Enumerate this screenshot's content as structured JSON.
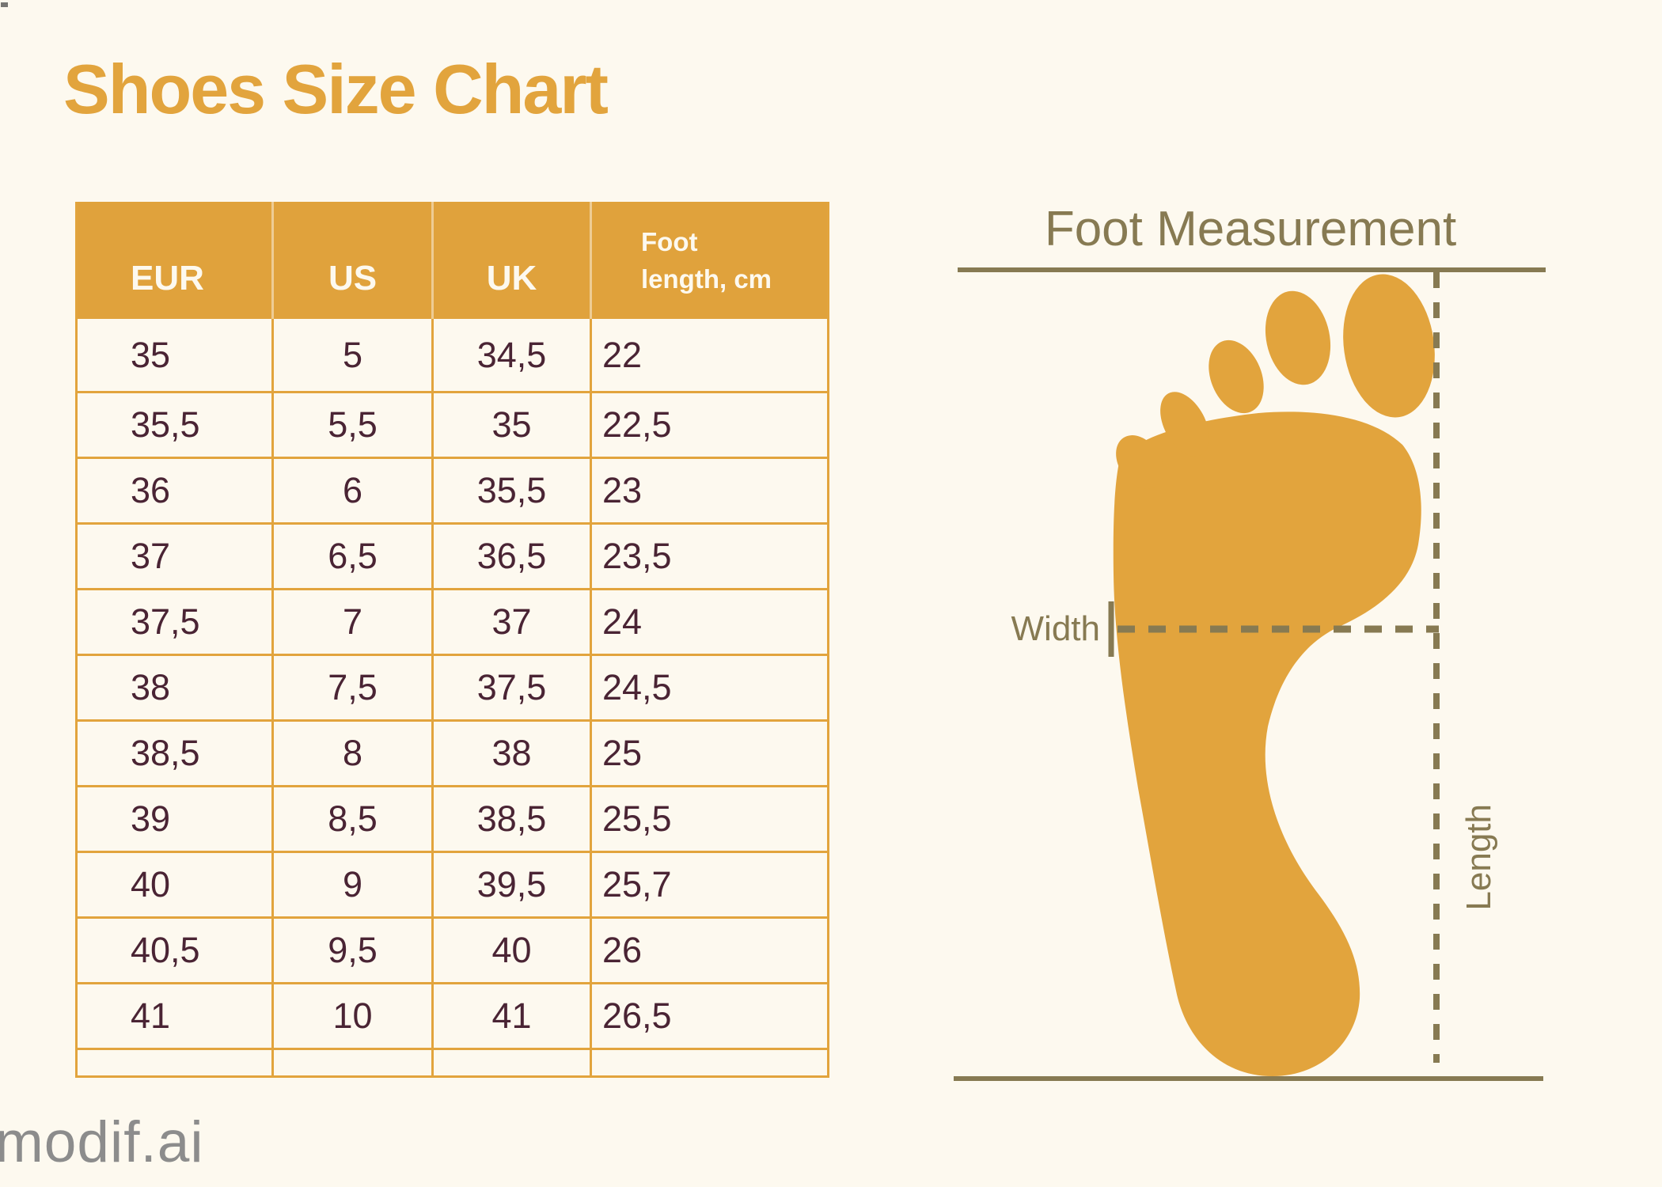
{
  "title": "Shoes Size Chart",
  "watermark": "modif.ai",
  "colors": {
    "background": "#FDF9EF",
    "accent_orange": "#E2A43D",
    "header_fill": "#E0A23C",
    "table_text": "#4A2434",
    "header_text": "#FDF9EF",
    "measurement_olive": "#877A52",
    "watermark_gray": "#8C8C8C"
  },
  "chart_data": {
    "type": "table",
    "title": "Shoes Size Chart",
    "columns": [
      "EUR",
      "US",
      "UK",
      "Foot length, cm"
    ],
    "rows": [
      [
        "35",
        "5",
        "34,5",
        "22"
      ],
      [
        "35,5",
        "5,5",
        "35",
        "22,5"
      ],
      [
        "36",
        "6",
        "35,5",
        "23"
      ],
      [
        "37",
        "6,5",
        "36,5",
        "23,5"
      ],
      [
        "37,5",
        "7",
        "37",
        "24"
      ],
      [
        "38",
        "7,5",
        "37,5",
        "24,5"
      ],
      [
        "38,5",
        "8",
        "38",
        "25"
      ],
      [
        "39",
        "8,5",
        "38,5",
        "25,5"
      ],
      [
        "40",
        "9",
        "39,5",
        "25,7"
      ],
      [
        "40,5",
        "9,5",
        "40",
        "26"
      ],
      [
        "41",
        "10",
        "41",
        "26,5"
      ]
    ]
  },
  "foot_measurement": {
    "title": "Foot Measurement",
    "width_label": "Width",
    "length_label": "Length"
  }
}
